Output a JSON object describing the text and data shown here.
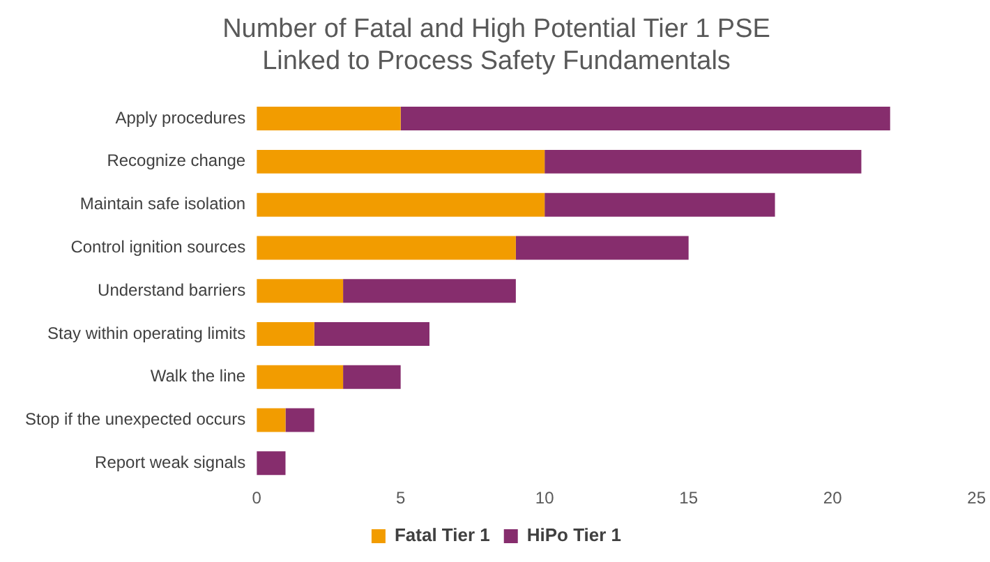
{
  "chart_data": {
    "type": "bar",
    "orientation": "horizontal",
    "stacked": true,
    "title": "Number of Fatal and High Potential Tier 1 PSE\nLinked to Process Safety Fundamentals",
    "categories": [
      "Apply procedures",
      "Recognize change",
      "Maintain safe isolation",
      "Control ignition sources",
      "Understand barriers",
      "Stay within operating limits",
      "Walk the line",
      "Stop if the unexpected occurs",
      "Report weak signals"
    ],
    "series": [
      {
        "name": "Fatal Tier 1",
        "color": "#f29c00",
        "values": [
          5,
          10,
          10,
          9,
          3,
          2,
          3,
          1,
          0
        ]
      },
      {
        "name": "HiPo Tier 1",
        "color": "#862d6d",
        "values": [
          17,
          11,
          8,
          6,
          6,
          4,
          2,
          1,
          1
        ]
      }
    ],
    "xlim": [
      0,
      25
    ],
    "xticks": [
      0,
      5,
      10,
      15,
      20,
      25
    ],
    "grid": false,
    "legend": "bottom"
  }
}
